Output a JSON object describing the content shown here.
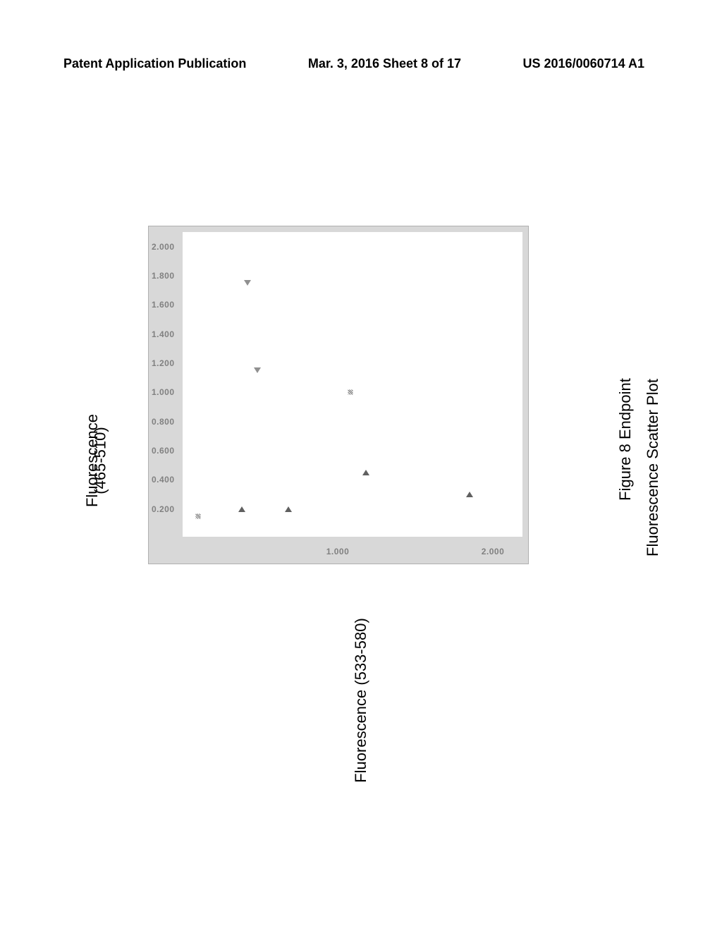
{
  "header": {
    "left": "Patent Application Publication",
    "center": "Mar. 3, 2016  Sheet 8 of 17",
    "right": "US 2016/0060714 A1"
  },
  "figure": {
    "title_line1": "Figure 8 Endpoint",
    "title_line2": "Fluorescence Scatter Plot",
    "ylabel_line1": "Fluorescence",
    "ylabel_line2": "(465-510)",
    "xlabel": "Fluorescence (533-580)",
    "chart": {
      "type": "scatter",
      "background_color": "#ffffff",
      "panel_color": "#d8d8d8",
      "tick_color": "#808080",
      "xlim": [
        0,
        2.2
      ],
      "ylim": [
        0,
        2.1
      ],
      "yticks": [
        "2.000",
        "1.800",
        "1.600",
        "1.400",
        "1.200",
        "1.000",
        "0.800",
        "0.600",
        "0.400",
        "0.200"
      ],
      "ytick_values": [
        2.0,
        1.8,
        1.6,
        1.4,
        1.2,
        1.0,
        0.8,
        0.6,
        0.4,
        0.2
      ],
      "xticks": [
        "1.000",
        "2.000"
      ],
      "xtick_values": [
        1.0,
        2.0
      ],
      "points": [
        {
          "x": 0.1,
          "y": 0.15,
          "marker": "stipple"
        },
        {
          "x": 0.38,
          "y": 0.2,
          "marker": "tri-up"
        },
        {
          "x": 0.42,
          "y": 1.75,
          "marker": "tri-down"
        },
        {
          "x": 0.48,
          "y": 1.15,
          "marker": "tri-down"
        },
        {
          "x": 0.68,
          "y": 0.2,
          "marker": "tri-up"
        },
        {
          "x": 1.08,
          "y": 1.0,
          "marker": "stipple"
        },
        {
          "x": 1.18,
          "y": 0.45,
          "marker": "tri-up"
        },
        {
          "x": 1.85,
          "y": 0.3,
          "marker": "tri-up"
        }
      ],
      "marker_colors": {
        "tri-up": "#606060",
        "tri-down": "#909090",
        "stipple": "#707070"
      }
    }
  }
}
